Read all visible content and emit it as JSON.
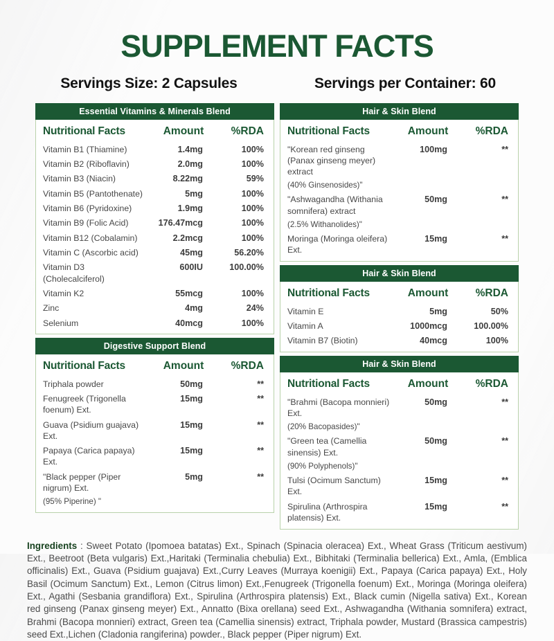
{
  "page": {
    "title": "SUPPLEMENT FACTS",
    "servings_size": "Servings Size: 2 Capsules",
    "servings_per_container": "Servings per Container: 60"
  },
  "columns_header": {
    "facts": "Nutritional Facts",
    "amount": "Amount",
    "rda": "%RDA"
  },
  "colors": {
    "accent_green": "#1b5833",
    "border_green": "#b9d2ab",
    "header_text": "#ffffff",
    "body_text": "#474747"
  },
  "tables": [
    {
      "column": "left",
      "title": "Essential Vitamins & Minerals Blend",
      "rows": [
        {
          "name": "Vitamin B1 (Thiamine)",
          "amount": "1.4mg",
          "rda": "100%"
        },
        {
          "name": "Vitamin B2 (Riboflavin)",
          "amount": "2.0mg",
          "rda": "100%"
        },
        {
          "name": "Vitamin B3 (Niacin)",
          "amount": "8.22mg",
          "rda": "59%"
        },
        {
          "name": "Vitamin B5 (Pantothenate)",
          "amount": "5mg",
          "rda": "100%"
        },
        {
          "name": "Vitamin B6 (Pyridoxine)",
          "amount": "1.9mg",
          "rda": "100%"
        },
        {
          "name": "Vitamin B9 (Folic Acid)",
          "amount": "176.47mcg",
          "rda": "100%"
        },
        {
          "name": "Vitamin B12 (Cobalamin)",
          "amount": "2.2mcg",
          "rda": "100%"
        },
        {
          "name": "Vitamin C (Ascorbic acid)",
          "amount": "45mg",
          "rda": "56.20%"
        },
        {
          "name": "Vitamin D3 (Cholecalciferol)",
          "amount": "600IU",
          "rda": "100.00%"
        },
        {
          "name": "Vitamin K2",
          "amount": "55mcg",
          "rda": "100%"
        },
        {
          "name": "Zinc",
          "amount": "4mg",
          "rda": "24%"
        },
        {
          "name": "Selenium",
          "amount": "40mcg",
          "rda": "100%"
        }
      ]
    },
    {
      "column": "left",
      "title": "Digestive Support Blend",
      "rows": [
        {
          "name": "Triphala powder",
          "amount": "50mg",
          "rda": "**"
        },
        {
          "name": "Fenugreek (Trigonella foenum) Ext.",
          "amount": "15mg",
          "rda": "**"
        },
        {
          "name": "Guava (Psidium guajava) Ext.",
          "amount": "15mg",
          "rda": "**"
        },
        {
          "name": "Papaya (Carica papaya) Ext.",
          "amount": "15mg",
          "rda": "**"
        },
        {
          "name": "\"Black pepper (Piper nigrum) Ext.",
          "sub": "(95% Piperine) \"",
          "amount": "5mg",
          "rda": "**"
        }
      ]
    },
    {
      "column": "right",
      "title": "Hair & Skin Blend",
      "rows": [
        {
          "name": "\"Korean red ginseng (Panax ginseng meyer) extract",
          "sub": "(40% Ginsenosides)\"",
          "amount": "100mg",
          "rda": "**"
        },
        {
          "name": "\"Ashwagandha (Withania somnifera) extract",
          "sub": "(2.5% Withanolides)\"",
          "amount": "50mg",
          "rda": "**"
        },
        {
          "name": "Moringa (Moringa oleifera) Ext.",
          "amount": "15mg",
          "rda": "**"
        }
      ]
    },
    {
      "column": "right",
      "title": "Hair & Skin Blend",
      "rows": [
        {
          "name": "Vitamin E",
          "amount": "5mg",
          "rda": "50%"
        },
        {
          "name": "Vitamin A",
          "amount": "1000mcg",
          "rda": "100.00%"
        },
        {
          "name": "Vitamin B7 (Biotin)",
          "amount": "40mcg",
          "rda": "100%"
        }
      ]
    },
    {
      "column": "right",
      "title": "Hair & Skin Blend",
      "rows": [
        {
          "name": "\"Brahmi (Bacopa monnieri) Ext.",
          "sub": "(20% Bacopasides)\"",
          "amount": "50mg",
          "rda": "**"
        },
        {
          "name": "\"Green tea (Camellia sinensis) Ext.",
          "sub": "(90% Polyphenols)\"",
          "amount": "50mg",
          "rda": "**"
        },
        {
          "name": "Tulsi (Ocimum Sanctum) Ext.",
          "amount": "15mg",
          "rda": "**"
        },
        {
          "name": "Spirulina (Arthrospira platensis) Ext.",
          "amount": "15mg",
          "rda": "**"
        }
      ]
    }
  ],
  "ingredients": {
    "label": "Ingredients",
    "separator": " : ",
    "text": "Sweet Potato (Ipomoea batatas) Ext., Spinach (Spinacia oleracea) Ext., Wheat Grass (Triticum aestivum) Ext., Beetroot (Beta vulgaris) Ext.,Haritaki (Terminalia chebulia) Ext., Bibhitaki (Terminalia bellerica) Ext., Amla, (Emblica officinalis) Ext., Guava (Psidium guajava) Ext.,Curry Leaves (Murraya koenigii) Ext., Papaya (Carica papaya) Ext., Holy Basil (Ocimum Sanctum) Ext., Lemon (Citrus limon) Ext.,Fenugreek (Trigonella foenum) Ext., Moringa (Moringa oleifera) Ext., Agathi (Sesbania grandiflora) Ext., Spirulina (Arthrospira platensis) Ext., Black cumin (Nigella sativa) Ext., Korean red ginseng (Panax ginseng meyer) Ext., Annatto (Bixa orellana) seed Ext., Ashwagandha (Withania somnifera) extract, Brahmi (Bacopa monnieri) extract, Green tea (Camellia sinensis) extract, Triphala powder, Mustard (Brassica campestris) seed Ext.,Lichen (Cladonia rangiferina) powder., Black pepper (Piper nigrum) Ext."
  }
}
